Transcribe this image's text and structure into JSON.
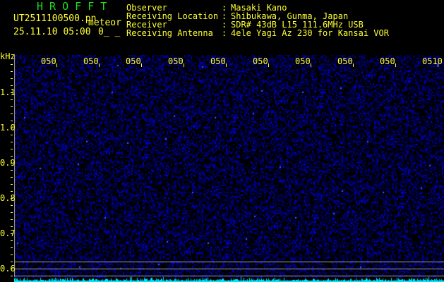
{
  "header": {
    "app_title": "H R O F F T",
    "filename": "UT2511100500.pn",
    "mode": "meteor",
    "datetime": "25.11.10 05:00",
    "count": "0_ _",
    "info": [
      {
        "label": "Observer",
        "value": "Masaki Kano"
      },
      {
        "label": "Receiving Location",
        "value": "Shibukawa, Gunma, Japan"
      },
      {
        "label": "Receiver",
        "value": "SDR# 43dB L15 111.6MHz USB"
      },
      {
        "label": "Receiving Antenna",
        "value": "4ele Yagi Az 230 for Kansai VOR"
      }
    ]
  },
  "chart_data": {
    "type": "heatmap",
    "ylabel": "kHz",
    "y_ticks": [
      "1.1",
      "1.0",
      "0.9",
      "0.8",
      "0.7",
      "0.6"
    ],
    "y_tick_values": [
      1.1,
      1.0,
      0.9,
      0.8,
      0.7,
      0.6
    ],
    "x_ticks": [
      "0501",
      "0502",
      "0503",
      "0504",
      "0505",
      "0506",
      "0507",
      "0508",
      "0509",
      "0510"
    ],
    "x_range": [
      "05:00",
      "05:10"
    ],
    "reference_lines_khz": [
      0.62,
      0.6,
      0.58
    ],
    "colors": {
      "background": "#000000",
      "noise": "#2020c0",
      "text": "#ffff33",
      "title": "#22dd22",
      "spectrum": "#00e5ff",
      "lines": "#a0a0a0"
    }
  }
}
